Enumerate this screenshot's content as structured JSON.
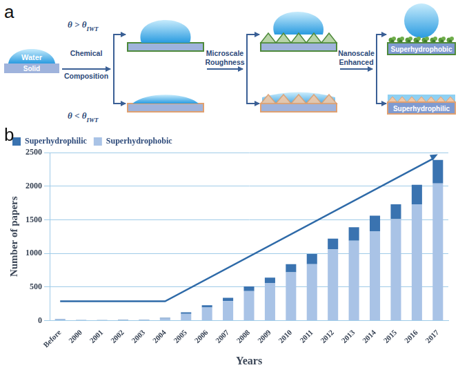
{
  "panel_labels": [
    "a",
    "b"
  ],
  "diagram": {
    "start": {
      "liquid": "Water",
      "substrate": "Solid"
    },
    "steps": [
      "Chemical Composition",
      "Microscale Roughness",
      "Nanoscale Enhanced"
    ],
    "branches": [
      {
        "condition": {
          "text": "θ > θ",
          "subscript": "IWT"
        },
        "result": "Superhydrophobic"
      },
      {
        "condition": {
          "text": "θ < θ",
          "subscript": "IWT"
        },
        "result": "Superhydrophilic"
      }
    ]
  },
  "chart_data": {
    "type": "bar",
    "stacked": true,
    "categories": [
      "Before",
      "2000",
      "2001",
      "2002",
      "2003",
      "2004",
      "2005",
      "2006",
      "2007",
      "2008",
      "2009",
      "2010",
      "2011",
      "2012",
      "2013",
      "2014",
      "2015",
      "2016",
      "2017"
    ],
    "series": [
      {
        "name": "Superhydrophobic",
        "color": "#a9c3e6",
        "values": [
          20,
          8,
          6,
          7,
          10,
          32,
          100,
          195,
          290,
          440,
          560,
          720,
          840,
          1060,
          1190,
          1330,
          1510,
          1730,
          2040
        ]
      },
      {
        "name": "Superhydrophilic",
        "color": "#3a73b0",
        "values": [
          5,
          3,
          2,
          3,
          5,
          10,
          25,
          35,
          50,
          70,
          80,
          120,
          150,
          160,
          200,
          230,
          220,
          290,
          350
        ]
      }
    ],
    "x_label": "Years",
    "y_label": "Number of papers",
    "ylim": [
      0,
      2500
    ],
    "yticks": [
      0,
      500,
      1000,
      1500,
      2000,
      2500
    ],
    "grid": true,
    "legend": "upper left"
  }
}
